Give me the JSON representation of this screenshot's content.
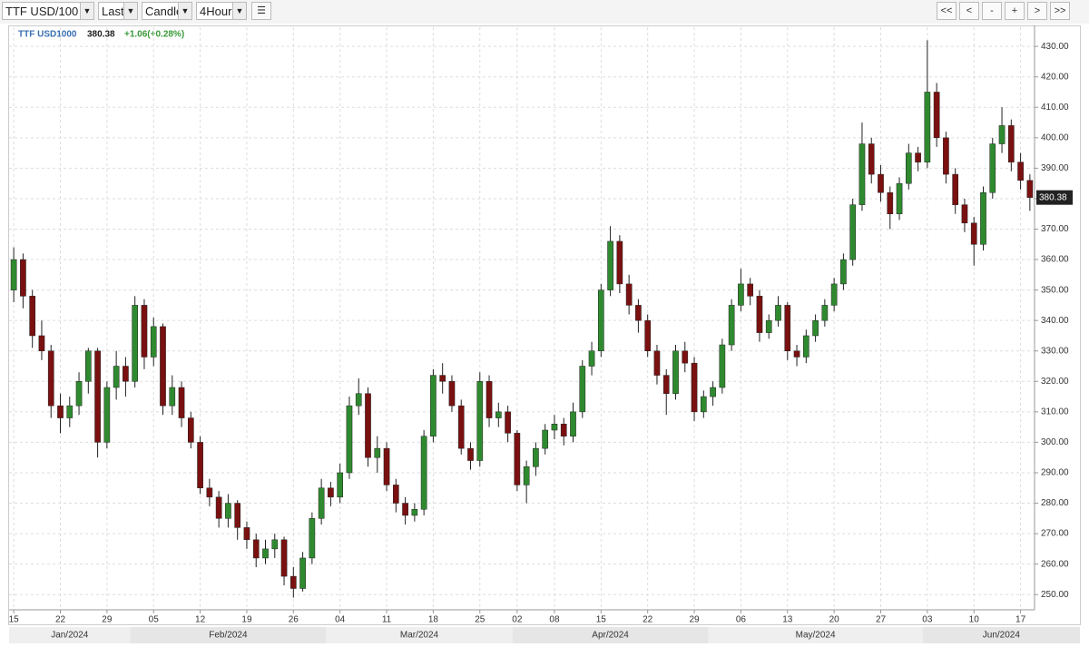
{
  "toolbar": {
    "selects": [
      "TTF USD/100",
      "Last",
      "Candle",
      "4Hour"
    ],
    "buttons": [
      "<<",
      "<",
      "-",
      "+",
      ">",
      ">>"
    ]
  },
  "chart_data": {
    "type": "candlestick",
    "symbol": "TTF USD1000",
    "change_label": "+1.06(+0.28%)",
    "up_color": "#2f8a2f",
    "down_color": "#7a1010",
    "grid": true,
    "ylim": [
      245,
      436.3
    ],
    "yticks": [
      {
        "value": 250,
        "label": "250.00"
      },
      {
        "value": 260,
        "label": "260.00"
      },
      {
        "value": 270,
        "label": "270.00"
      },
      {
        "value": 280,
        "label": "280.00"
      },
      {
        "value": 290,
        "label": "290.00"
      },
      {
        "value": 300,
        "label": "300.00"
      },
      {
        "value": 310,
        "label": "310.00"
      },
      {
        "value": 320,
        "label": "320.00"
      },
      {
        "value": 330,
        "label": "330.00"
      },
      {
        "value": 340,
        "label": "340.00"
      },
      {
        "value": 350,
        "label": "350.00"
      },
      {
        "value": 360,
        "label": "360.00"
      },
      {
        "value": 370,
        "label": "370.00"
      },
      {
        "value": 380,
        "label": "380.00"
      },
      {
        "value": 390,
        "label": "390.00"
      },
      {
        "value": 400,
        "label": "400.00"
      },
      {
        "value": 410,
        "label": "410.00"
      },
      {
        "value": 420,
        "label": "420.00"
      },
      {
        "value": 430,
        "label": "430.00"
      }
    ],
    "periods": [
      "Jan/2024",
      "Feb/2024",
      "Mar/2024",
      "Apr/2024",
      "May/2024",
      "Jun/2024"
    ],
    "categories": [
      "15",
      null,
      null,
      null,
      null,
      "22",
      null,
      null,
      null,
      null,
      "29",
      null,
      null,
      null,
      null,
      "05",
      null,
      null,
      null,
      null,
      "12",
      null,
      null,
      null,
      null,
      "19",
      null,
      null,
      null,
      null,
      "26",
      null,
      null,
      null,
      null,
      "04",
      null,
      null,
      null,
      null,
      "11",
      null,
      null,
      null,
      null,
      "18",
      null,
      null,
      null,
      null,
      "25",
      null,
      null,
      null,
      "02",
      null,
      null,
      null,
      "08",
      null,
      null,
      null,
      null,
      "15",
      null,
      null,
      null,
      null,
      "22",
      null,
      null,
      null,
      null,
      "29",
      null,
      null,
      null,
      null,
      "06",
      null,
      null,
      null,
      null,
      "13",
      null,
      null,
      null,
      null,
      "20",
      null,
      null,
      null,
      null,
      "27",
      null,
      null,
      null,
      null,
      "03",
      null,
      null,
      null,
      null,
      "10",
      null,
      null,
      null,
      null,
      "17",
      null
    ],
    "ohlc": [
      [
        350,
        364,
        346,
        360
      ],
      [
        360,
        362,
        344,
        348
      ],
      [
        348,
        350,
        331,
        335
      ],
      [
        335,
        340,
        327,
        330
      ],
      [
        330,
        332,
        308,
        312
      ],
      [
        312,
        316,
        303,
        308
      ],
      [
        308,
        315,
        305,
        312
      ],
      [
        312,
        323,
        309,
        320
      ],
      [
        320,
        331,
        316,
        330
      ],
      [
        330,
        331,
        295,
        300
      ],
      [
        300,
        320,
        298,
        318
      ],
      [
        318,
        330,
        314,
        325
      ],
      [
        325,
        328,
        315,
        320
      ],
      [
        320,
        348,
        318,
        345
      ],
      [
        345,
        347,
        324,
        328
      ],
      [
        328,
        341,
        325,
        338
      ],
      [
        338,
        339,
        309,
        312
      ],
      [
        312,
        322,
        309,
        318
      ],
      [
        318,
        320,
        305,
        308
      ],
      [
        308,
        310,
        298,
        300
      ],
      [
        300,
        302,
        283,
        285
      ],
      [
        285,
        288,
        279,
        282
      ],
      [
        282,
        284,
        272,
        275
      ],
      [
        275,
        283,
        272,
        280
      ],
      [
        280,
        281,
        268,
        272
      ],
      [
        272,
        274,
        265,
        268
      ],
      [
        268,
        270,
        259,
        262
      ],
      [
        262,
        268,
        260,
        265
      ],
      [
        265,
        270,
        262,
        268
      ],
      [
        268,
        269,
        253,
        256
      ],
      [
        256,
        259,
        249,
        252
      ],
      [
        252,
        264,
        251,
        262
      ],
      [
        262,
        277,
        260,
        275
      ],
      [
        275,
        288,
        273,
        285
      ],
      [
        285,
        287,
        279,
        282
      ],
      [
        282,
        293,
        280,
        290
      ],
      [
        290,
        315,
        288,
        312
      ],
      [
        312,
        321,
        309,
        316
      ],
      [
        316,
        318,
        292,
        295
      ],
      [
        295,
        302,
        290,
        298
      ],
      [
        298,
        300,
        284,
        286
      ],
      [
        286,
        288,
        277,
        280
      ],
      [
        280,
        282,
        273,
        276
      ],
      [
        276,
        280,
        274,
        278
      ],
      [
        278,
        304,
        276,
        302
      ],
      [
        302,
        324,
        300,
        322
      ],
      [
        322,
        326,
        316,
        320
      ],
      [
        320,
        322,
        310,
        312
      ],
      [
        312,
        314,
        296,
        298
      ],
      [
        298,
        300,
        291,
        294
      ],
      [
        294,
        323,
        292,
        320
      ],
      [
        320,
        322,
        305,
        308
      ],
      [
        308,
        313,
        305,
        310
      ],
      [
        310,
        312,
        300,
        303
      ],
      [
        303,
        304,
        284,
        286
      ],
      [
        286,
        294,
        280,
        292
      ],
      [
        292,
        300,
        289,
        298
      ],
      [
        298,
        306,
        296,
        304
      ],
      [
        304,
        309,
        301,
        306
      ],
      [
        306,
        308,
        299,
        302
      ],
      [
        302,
        313,
        300,
        310
      ],
      [
        310,
        327,
        308,
        325
      ],
      [
        325,
        333,
        322,
        330
      ],
      [
        330,
        352,
        328,
        350
      ],
      [
        350,
        371,
        348,
        366
      ],
      [
        366,
        368,
        349,
        352
      ],
      [
        352,
        355,
        342,
        345
      ],
      [
        345,
        347,
        336,
        340
      ],
      [
        340,
        342,
        328,
        330
      ],
      [
        330,
        332,
        319,
        322
      ],
      [
        322,
        324,
        309,
        316
      ],
      [
        316,
        332,
        314,
        330
      ],
      [
        330,
        333,
        323,
        326
      ],
      [
        326,
        328,
        307,
        310
      ],
      [
        310,
        317,
        308,
        315
      ],
      [
        315,
        320,
        312,
        318
      ],
      [
        318,
        334,
        316,
        332
      ],
      [
        332,
        347,
        330,
        345
      ],
      [
        345,
        357,
        343,
        352
      ],
      [
        352,
        354,
        345,
        348
      ],
      [
        348,
        350,
        333,
        336
      ],
      [
        336,
        342,
        334,
        340
      ],
      [
        340,
        348,
        338,
        345
      ],
      [
        345,
        346,
        327,
        330
      ],
      [
        330,
        332,
        325,
        328
      ],
      [
        328,
        337,
        326,
        335
      ],
      [
        335,
        342,
        333,
        340
      ],
      [
        340,
        347,
        338,
        345
      ],
      [
        345,
        354,
        343,
        352
      ],
      [
        352,
        362,
        350,
        360
      ],
      [
        360,
        380,
        358,
        378
      ],
      [
        378,
        405,
        376,
        398
      ],
      [
        398,
        400,
        385,
        388
      ],
      [
        388,
        391,
        379,
        382
      ],
      [
        382,
        384,
        370,
        375
      ],
      [
        375,
        387,
        373,
        385
      ],
      [
        385,
        398,
        383,
        395
      ],
      [
        395,
        397,
        389,
        392
      ],
      [
        392,
        432,
        390,
        415
      ],
      [
        415,
        418,
        397,
        400
      ],
      [
        400,
        402,
        385,
        388
      ],
      [
        388,
        390,
        375,
        378
      ],
      [
        378,
        380,
        369,
        372
      ],
      [
        372,
        374,
        358,
        365
      ],
      [
        365,
        384,
        363,
        382
      ],
      [
        382,
        400,
        380,
        398
      ],
      [
        398,
        410,
        395,
        404
      ],
      [
        404,
        406,
        389,
        392
      ],
      [
        392,
        395,
        383,
        386
      ],
      [
        386,
        388,
        376,
        380.38
      ]
    ]
  }
}
